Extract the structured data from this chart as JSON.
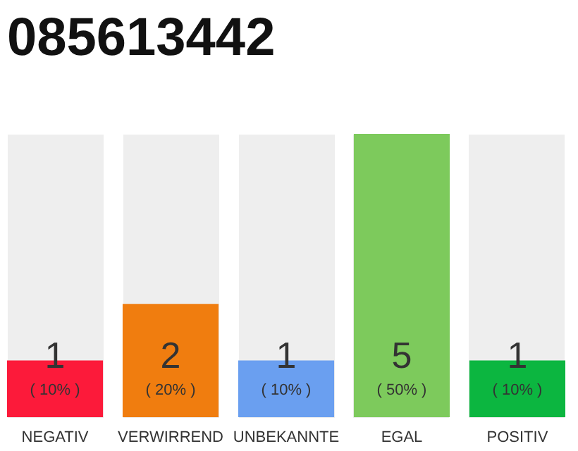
{
  "chart_data": {
    "type": "bar",
    "title": "085613442",
    "categories": [
      "NEGATIV",
      "VERWIRREND",
      "UNBEKANNTE",
      "EGAL",
      "POSITIV"
    ],
    "values": [
      1,
      2,
      1,
      5,
      1
    ],
    "colors": [
      "#fc1a3a",
      "#f07d0f",
      "#6a9ff0",
      "#7dca5c",
      "#0cb640"
    ],
    "data_labels": true,
    "grid": "x",
    "annotations": [
      "( 10% )",
      "( 20% )",
      "( 10% )",
      "( 50% )",
      "( 10% )"
    ]
  }
}
